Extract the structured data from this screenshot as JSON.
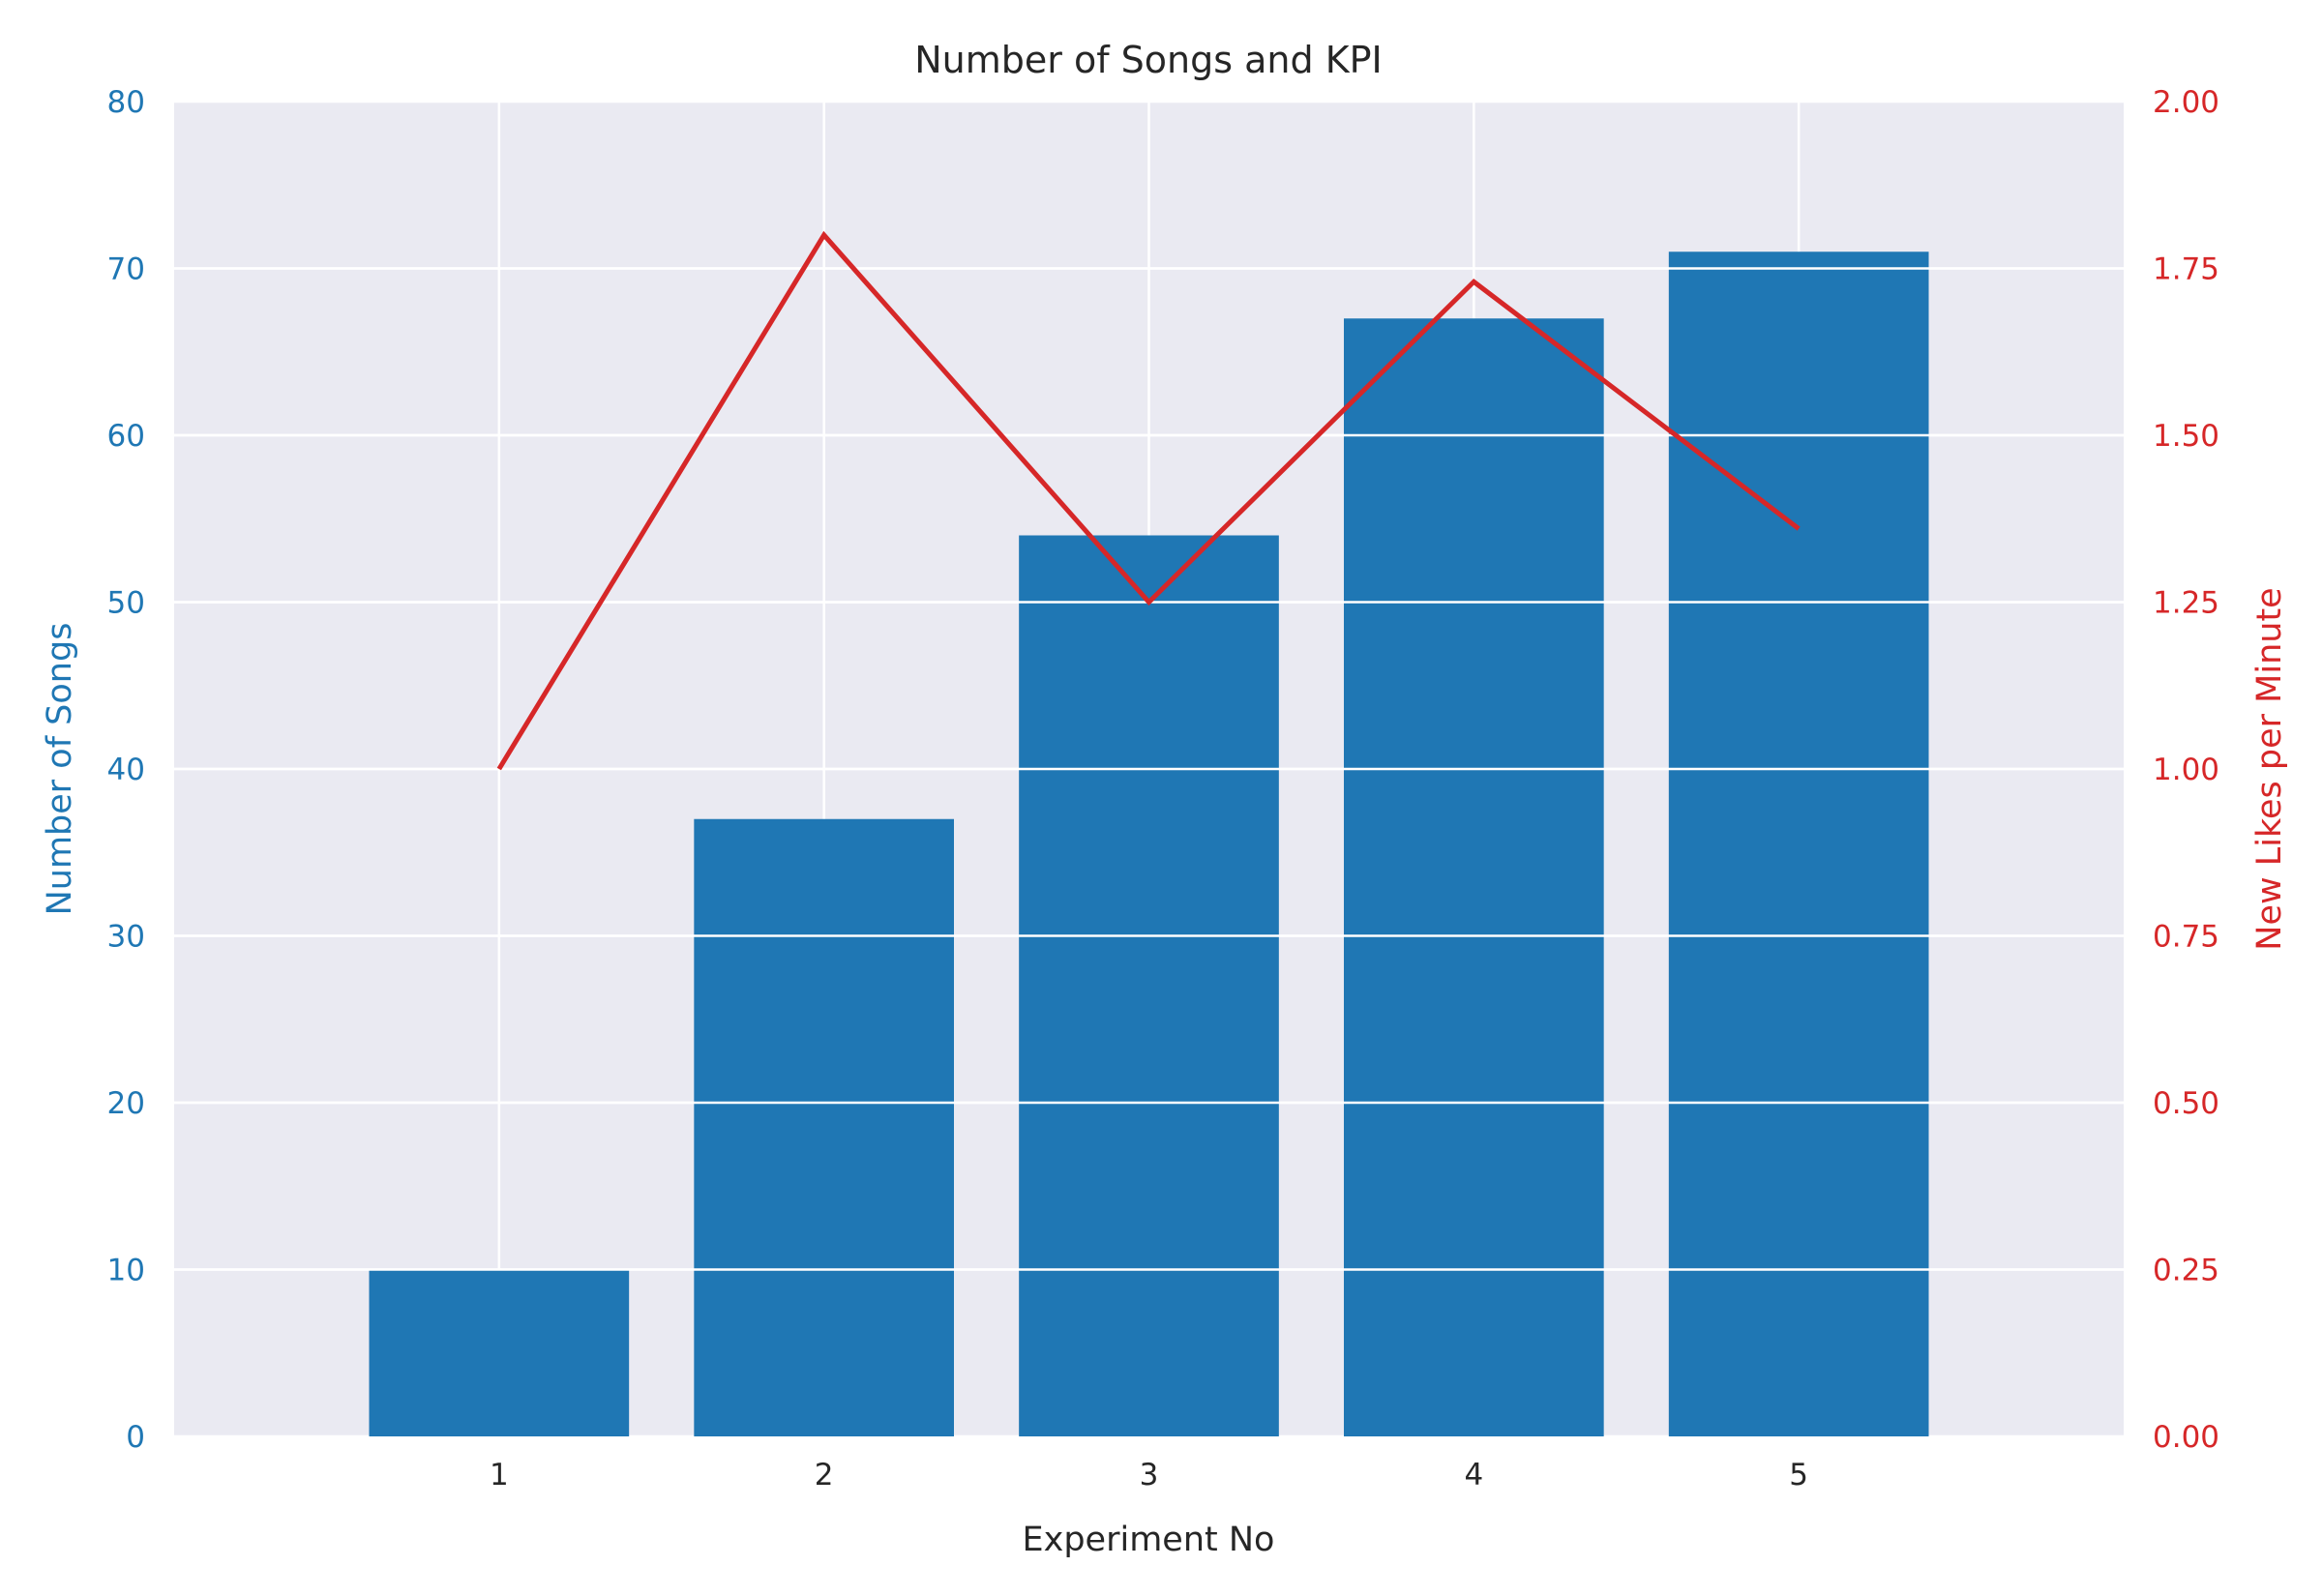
{
  "chart_data": {
    "type": "bar",
    "title": "Number of Songs and KPI",
    "xlabel": "Experiment No",
    "ylabel": "Number of Songs",
    "y2label": "New Likes per Minute",
    "categories": [
      "1",
      "2",
      "3",
      "4",
      "5"
    ],
    "x": [
      1,
      2,
      3,
      4,
      5
    ],
    "xlim": [
      0,
      6
    ],
    "ylim": [
      0,
      80
    ],
    "y2lim": [
      0,
      2
    ],
    "yticks": [
      0,
      10,
      20,
      30,
      40,
      50,
      60,
      70,
      80
    ],
    "y2ticks": [
      0,
      0.25,
      0.5,
      0.75,
      1.0,
      1.25,
      1.5,
      1.75,
      2.0
    ],
    "y2tick_labels": [
      "0.00",
      "0.25",
      "0.50",
      "0.75",
      "1.00",
      "1.25",
      "1.50",
      "1.75",
      "2.00"
    ],
    "grid": true,
    "colors": {
      "background": "#eaeaf2",
      "bar": "#1f77b4",
      "line": "#d62728",
      "left_axis": "#1f77b4",
      "right_axis": "#d62728",
      "text": "#262626"
    },
    "series": [
      {
        "type": "bar",
        "axis": "left",
        "values": [
          10,
          37,
          54,
          67,
          71
        ]
      },
      {
        "type": "line",
        "axis": "right",
        "values": [
          1.0,
          1.8,
          1.25,
          1.73,
          1.36
        ]
      }
    ]
  }
}
